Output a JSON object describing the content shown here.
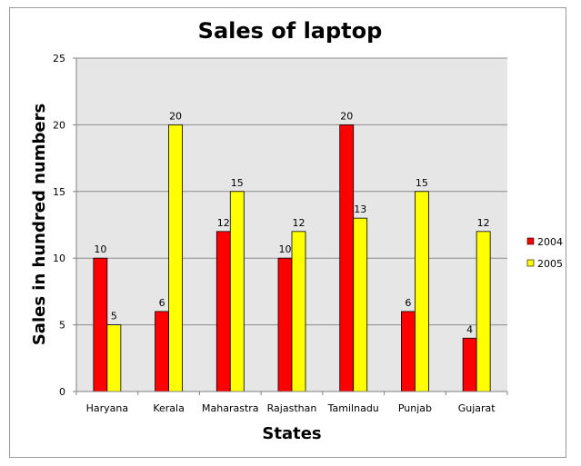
{
  "chart_data": {
    "type": "bar",
    "title": "Sales of laptop",
    "xlabel": "States",
    "ylabel": "Sales in hundred numbers",
    "categories": [
      "Haryana",
      "Kerala",
      "Maharastra",
      "Rajasthan",
      "Tamilnadu",
      "Punjab",
      "Gujarat"
    ],
    "series": [
      {
        "name": "2004",
        "color": "#ff0000",
        "values": [
          10,
          6,
          12,
          10,
          20,
          6,
          4
        ]
      },
      {
        "name": "2005",
        "color": "#ffff00",
        "values": [
          5,
          20,
          15,
          12,
          13,
          15,
          12
        ]
      }
    ],
    "ylim": [
      0,
      25
    ],
    "yticks": [
      0,
      5,
      10,
      15,
      20,
      25
    ],
    "grid": true,
    "plot_background": "#e6e6e6",
    "legend_position": "right",
    "data_labels": true
  }
}
